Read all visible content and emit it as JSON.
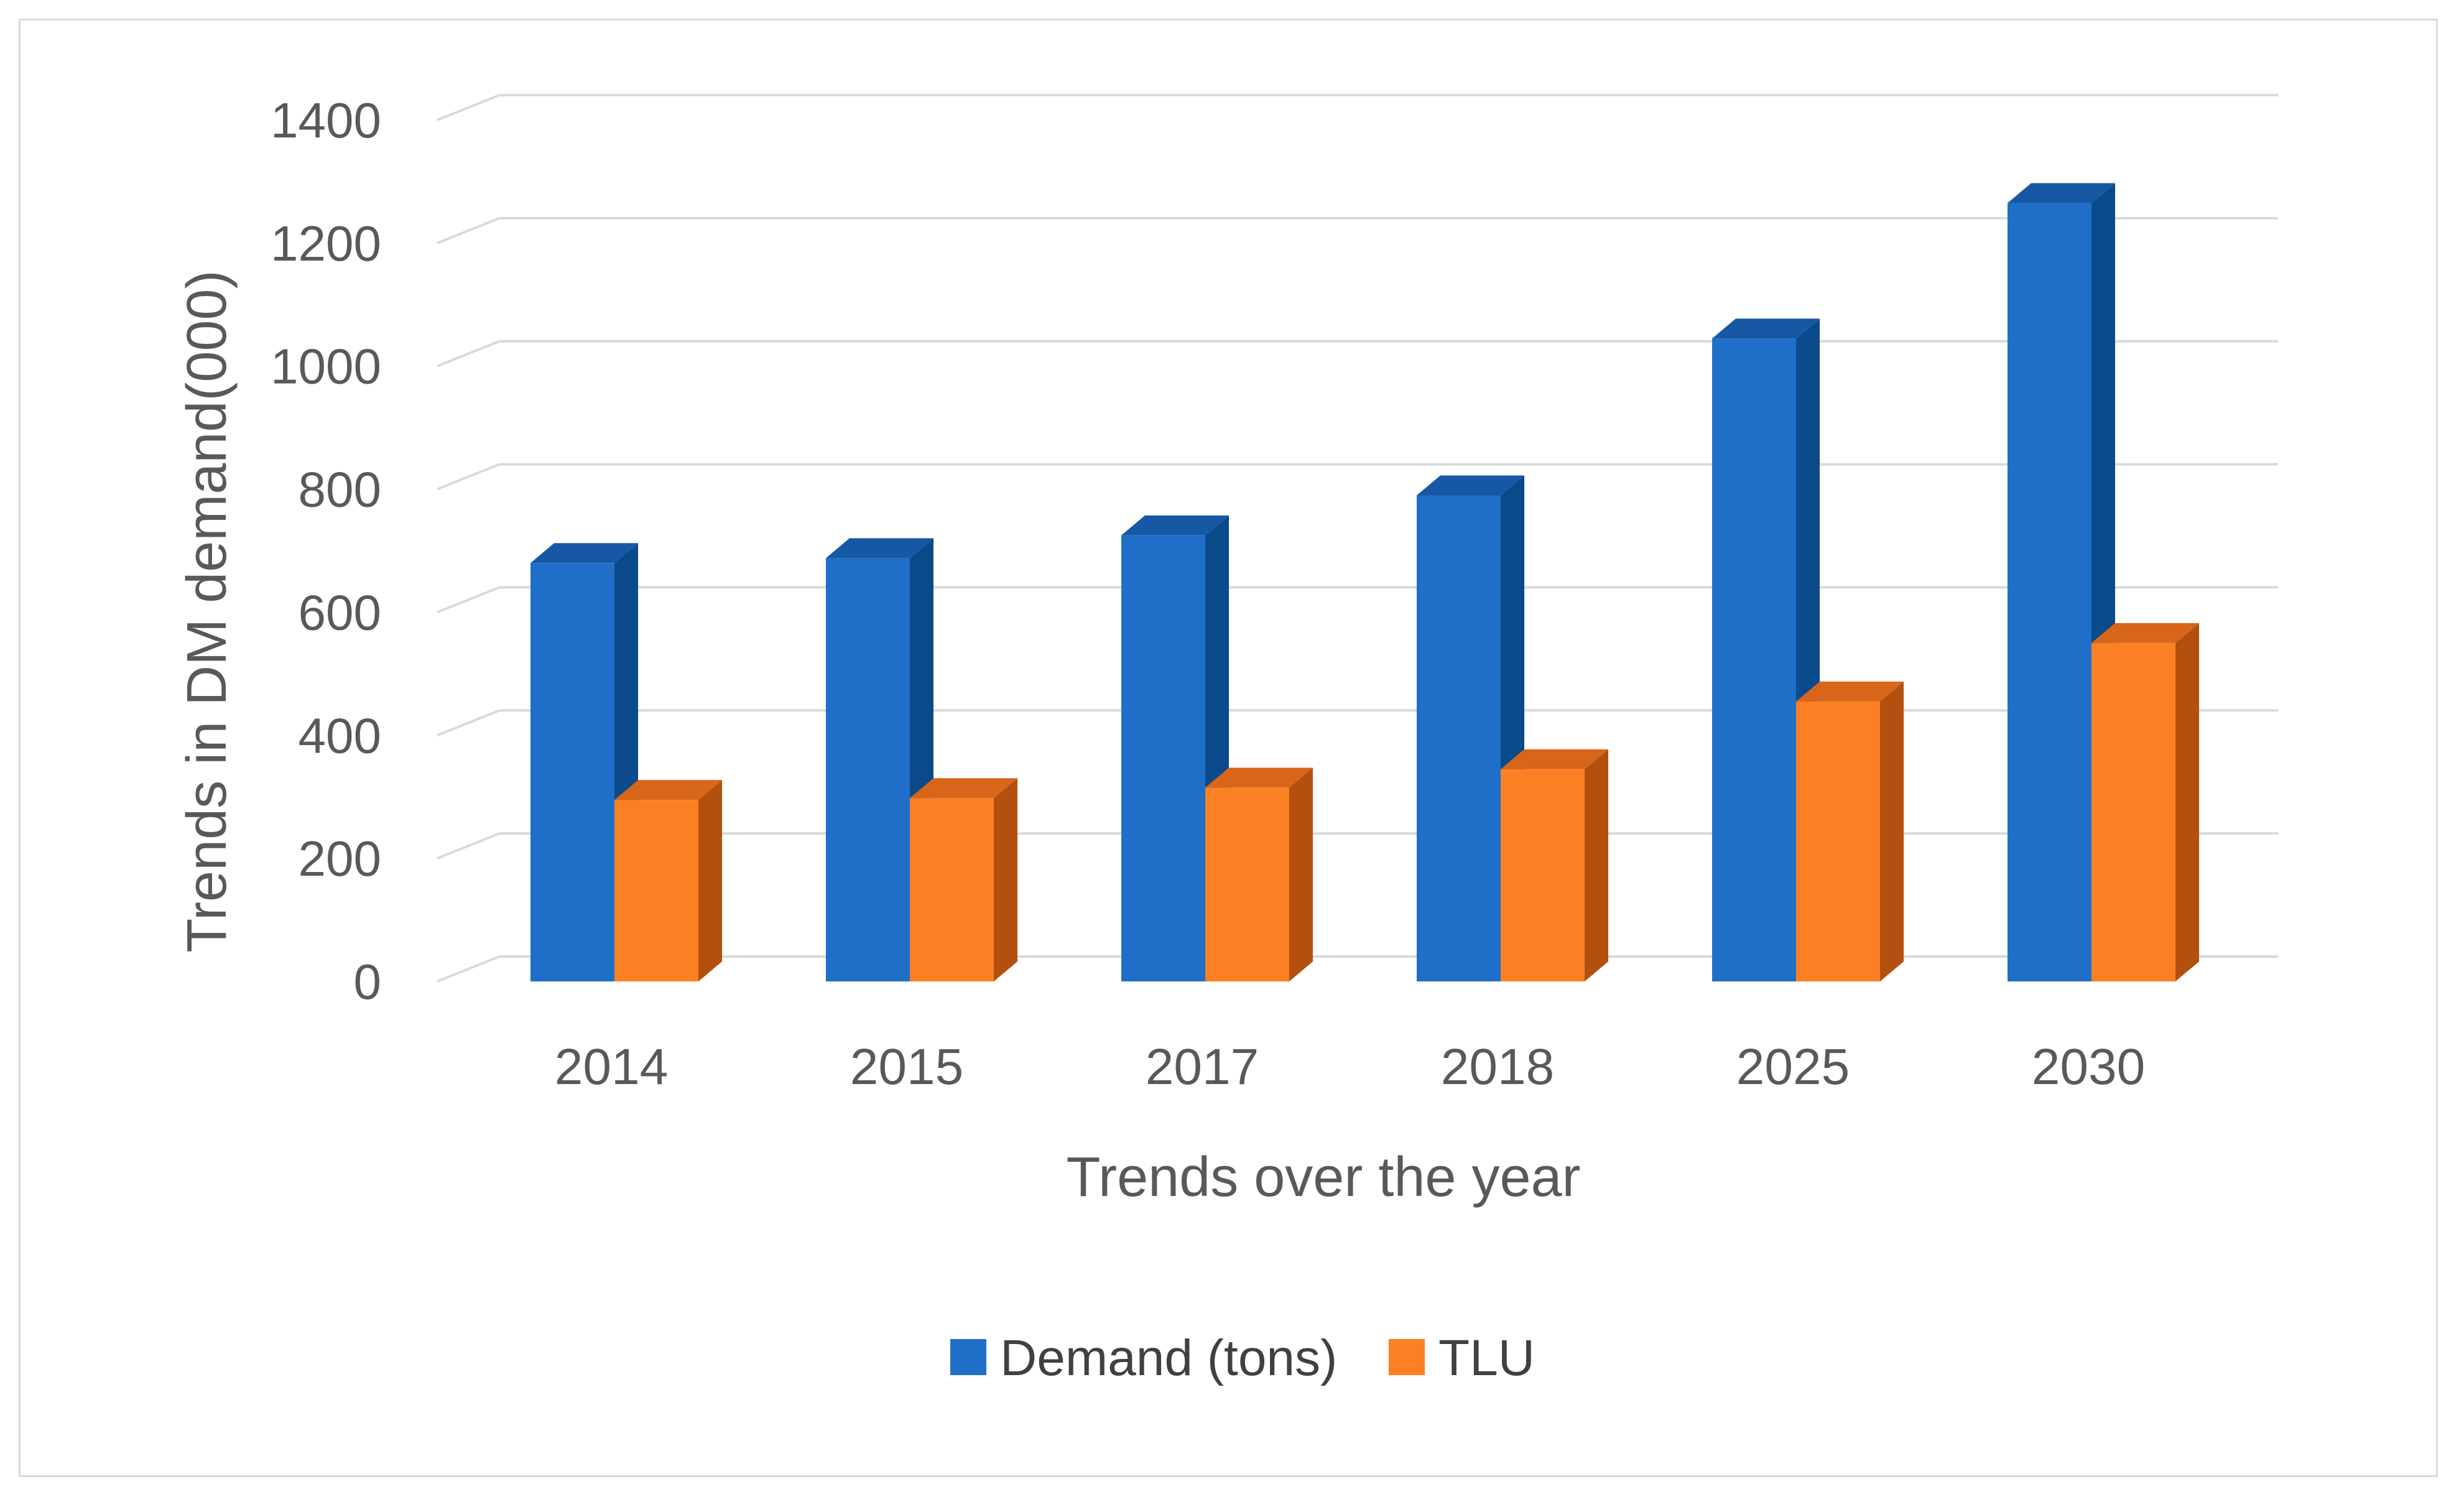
{
  "chart_data": {
    "type": "bar",
    "variant": "3d-clustered-column",
    "title": "",
    "xlabel": "Trends over the year",
    "ylabel": "Trends in DM demand(000)",
    "categories": [
      "2014",
      "2015",
      "2017",
      "2018",
      "2025",
      "2030"
    ],
    "series": [
      {
        "name": "Demand (tons)",
        "values": [
          680,
          688,
          725,
          790,
          1045,
          1265
        ]
      },
      {
        "name": "TLU",
        "values": [
          295,
          298,
          315,
          345,
          455,
          550
        ]
      }
    ],
    "ylim": [
      0,
      1400
    ],
    "yticks": [
      "0",
      "200",
      "400",
      "600",
      "800",
      "1000",
      "1200",
      "1400"
    ],
    "grid": true,
    "legend_position": "bottom",
    "colors": {
      "series": [
        {
          "front": "#1f6fc8",
          "side": "#0b4a8a",
          "top": "#1658a4"
        },
        {
          "front": "#fb8024",
          "side": "#b4500f",
          "top": "#d8661a"
        }
      ],
      "grid": "#d9d9d9",
      "text": "#595959"
    }
  }
}
